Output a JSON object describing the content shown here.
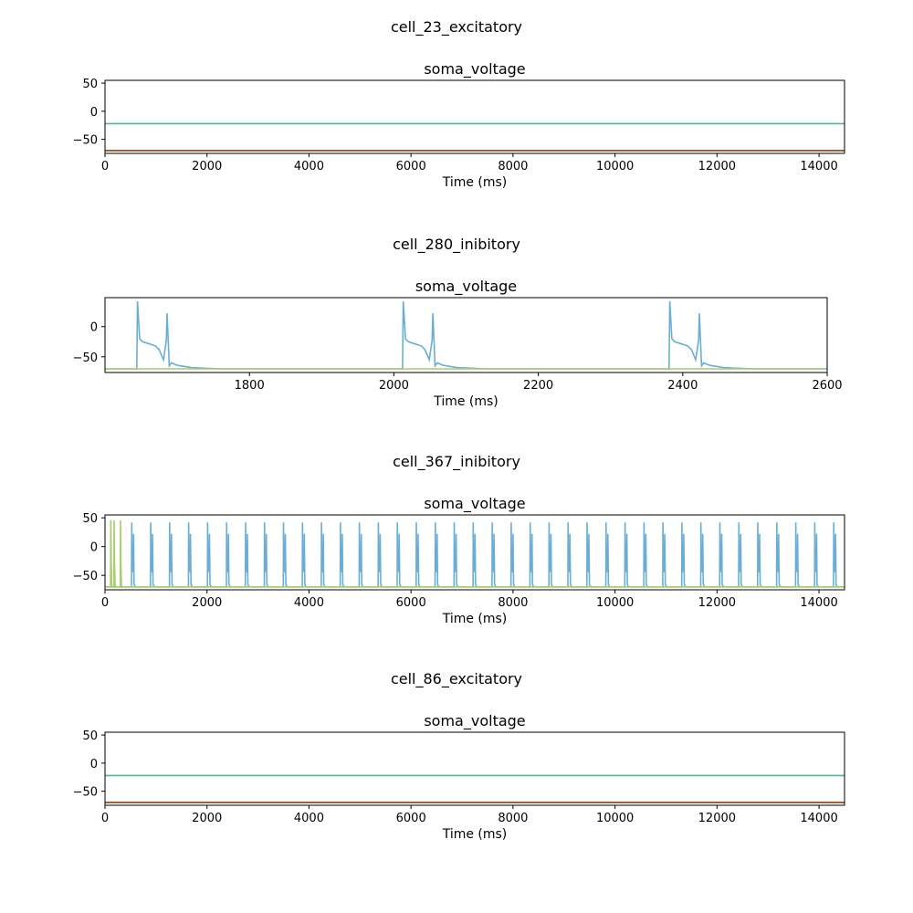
{
  "chart_data": [
    {
      "type": "line",
      "suptitle": "cell_23_excitatory",
      "title": "soma_voltage",
      "xlabel": "Time (ms)",
      "ylabel": "",
      "xlim": [
        0,
        14500
      ],
      "ylim": [
        -75,
        55
      ],
      "xticks": [
        0,
        2000,
        4000,
        6000,
        8000,
        10000,
        12000,
        14000
      ],
      "yticks": [
        50,
        0,
        -50
      ],
      "grid": false,
      "series": [
        {
          "color": "#5ab48c",
          "x": [
            0,
            14500
          ],
          "y": [
            -22,
            -22
          ]
        },
        {
          "color": "#8c3c14",
          "x": [
            0,
            14500
          ],
          "y": [
            -70,
            -70
          ]
        }
      ]
    },
    {
      "type": "line",
      "suptitle": "cell_280_inibitory",
      "title": "soma_voltage",
      "xlabel": "Time (ms)",
      "ylabel": "",
      "xlim": [
        1600,
        2600
      ],
      "ylim": [
        -76,
        48
      ],
      "xticks": [
        1800,
        2000,
        2200,
        2400,
        2600
      ],
      "yticks": [
        0,
        -50
      ],
      "grid": false,
      "series": [
        {
          "color": "#6aaed6",
          "x": [
            1600,
            1644,
            1645,
            1648,
            1652,
            1660,
            1670,
            1675,
            1681,
            1685,
            1686,
            1689,
            1692,
            1700,
            1720,
            1760,
            2012,
            2013,
            2016,
            2020,
            2028,
            2038,
            2043,
            2049,
            2053,
            2054,
            2057,
            2060,
            2068,
            2088,
            2128,
            2381,
            2382,
            2385,
            2389,
            2397,
            2407,
            2412,
            2418,
            2422,
            2423,
            2426,
            2429,
            2437,
            2457,
            2497,
            2600
          ],
          "y": [
            -70,
            -70,
            42,
            -20,
            -25,
            -28,
            -32,
            -38,
            -55,
            -22,
            22,
            -65,
            -60,
            -64,
            -68,
            -70,
            -70,
            42,
            -20,
            -25,
            -28,
            -32,
            -38,
            -55,
            -22,
            22,
            -65,
            -60,
            -64,
            -68,
            -70,
            -70,
            42,
            -20,
            -25,
            -28,
            -32,
            -38,
            -55,
            -22,
            22,
            -65,
            -60,
            -64,
            -68,
            -70,
            -70
          ]
        },
        {
          "color": "#a8cc6c",
          "x": [
            1600,
            2600
          ],
          "y": [
            -70,
            -70
          ]
        }
      ]
    },
    {
      "type": "line",
      "suptitle": "cell_367_inibitory",
      "title": "soma_voltage",
      "xlabel": "Time (ms)",
      "ylabel": "",
      "xlim": [
        0,
        14500
      ],
      "ylim": [
        -75,
        55
      ],
      "xticks": [
        0,
        2000,
        4000,
        6000,
        8000,
        10000,
        12000,
        14000
      ],
      "yticks": [
        50,
        0,
        -50
      ],
      "grid": false,
      "spike_trains": [
        {
          "color": "#6aaed6",
          "start": 520,
          "interval": 372,
          "count": 39,
          "peak": 42,
          "second_peak": 22,
          "second_delay": 40,
          "rest": -70
        },
        {
          "color": "#a8cc6c",
          "times": [
            110,
            175,
            300
          ],
          "peak": 46,
          "rest": -70
        }
      ]
    },
    {
      "type": "line",
      "suptitle": "cell_86_excitatory",
      "title": "soma_voltage",
      "xlabel": "Time (ms)",
      "ylabel": "",
      "xlim": [
        0,
        14500
      ],
      "ylim": [
        -75,
        55
      ],
      "xticks": [
        0,
        2000,
        4000,
        6000,
        8000,
        10000,
        12000,
        14000
      ],
      "yticks": [
        50,
        0,
        -50
      ],
      "grid": false,
      "series": [
        {
          "color": "#5ab48c",
          "x": [
            0,
            14500
          ],
          "y": [
            -22,
            -22
          ]
        },
        {
          "color": "#8c3c14",
          "x": [
            0,
            14500
          ],
          "y": [
            -70,
            -70
          ]
        }
      ]
    }
  ]
}
